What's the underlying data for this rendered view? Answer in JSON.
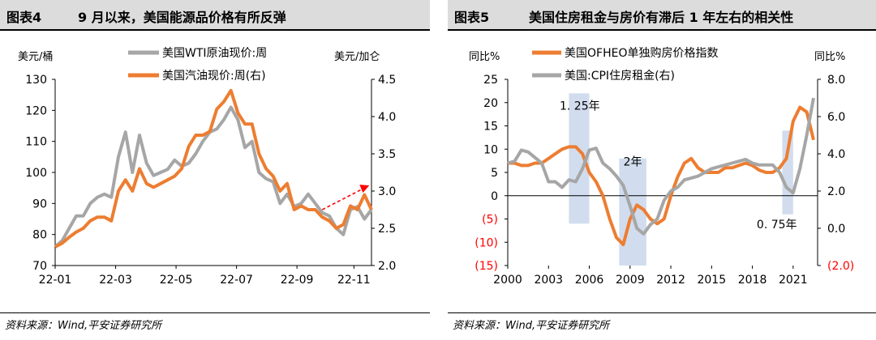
{
  "left": {
    "figure_no": "图表4",
    "title": "9 月以来，美国能源品价格有所反弹",
    "source": "资料来源：Wind,平安证券研究所",
    "left_unit": "美元/桶",
    "right_unit": "美元/加仑"
  },
  "right": {
    "figure_no": "图表5",
    "title": "美国住房租金与房价有滞后 1 年左右的相关性",
    "source": "资料来源：Wind,平安证券研究所",
    "left_unit": "同比%",
    "right_unit": "同比%",
    "annotation_1": "1. 25年",
    "annotation_2": "2年",
    "annotation_3": "0. 75年"
  },
  "chart_data": [
    {
      "type": "line",
      "title": "9 月以来，美国能源品价格有所反弹",
      "ylabel_left": "美元/桶",
      "ylabel_right": "美元/加仑",
      "ylim_left": [
        70,
        130
      ],
      "ylim_right": [
        2.0,
        4.5
      ],
      "yticks_left": [
        "70",
        "80",
        "90",
        "100",
        "110",
        "120",
        "130"
      ],
      "yticks_right": [
        "2.0",
        "2.5",
        "3.0",
        "3.5",
        "4.0",
        "4.5"
      ],
      "x_ticks": [
        "22-01",
        "22-03",
        "22-05",
        "22-07",
        "22-09",
        "22-11"
      ],
      "x_range": [
        0,
        45
      ],
      "legend_position": "top",
      "grid": false,
      "series": [
        {
          "name": "美国WTI原油现价:周",
          "axis": "left",
          "color": "#a6a6a6",
          "x": [
            0,
            1,
            2,
            3,
            4,
            5,
            6,
            7,
            8,
            9,
            10,
            11,
            12,
            13,
            14,
            15,
            16,
            17,
            18,
            19,
            20,
            21,
            22,
            23,
            24,
            25,
            26,
            27,
            28,
            29,
            30,
            31,
            32,
            33,
            34,
            35,
            36,
            37,
            38,
            39,
            40,
            41,
            42,
            43,
            44,
            45
          ],
          "values": [
            76,
            78,
            82,
            86,
            86,
            90,
            92,
            93,
            92,
            105,
            113,
            100,
            112,
            103,
            99,
            100,
            101,
            104,
            102,
            103,
            106,
            110,
            113,
            114,
            117,
            121,
            117,
            108,
            110,
            100,
            98,
            97,
            90,
            93,
            89,
            90,
            93,
            90,
            87,
            86,
            82,
            80,
            88,
            89,
            85,
            88
          ]
        },
        {
          "name": "美国汽油现价:周(右)",
          "axis": "right",
          "color": "#ed7d31",
          "x": [
            0,
            1,
            2,
            3,
            4,
            5,
            6,
            7,
            8,
            9,
            10,
            11,
            12,
            13,
            14,
            15,
            16,
            17,
            18,
            19,
            20,
            21,
            22,
            23,
            24,
            25,
            26,
            27,
            28,
            29,
            30,
            31,
            32,
            33,
            34,
            35,
            36,
            37,
            38,
            39,
            40,
            41,
            42,
            43,
            44,
            45
          ],
          "values": [
            2.25,
            2.3,
            2.38,
            2.45,
            2.5,
            2.6,
            2.65,
            2.65,
            2.6,
            3.0,
            3.15,
            3.0,
            3.3,
            3.1,
            3.05,
            3.1,
            3.15,
            3.2,
            3.3,
            3.6,
            3.75,
            3.75,
            3.8,
            4.1,
            4.2,
            4.35,
            4.05,
            3.9,
            3.9,
            3.5,
            3.3,
            3.2,
            3.0,
            3.1,
            2.75,
            2.8,
            2.75,
            2.75,
            2.65,
            2.6,
            2.5,
            2.55,
            2.8,
            2.75,
            2.95,
            2.75
          ]
        }
      ],
      "annotations": [
        {
          "type": "arrow",
          "style": "dashed",
          "color": "#ff0000",
          "from": [
            38,
            88
          ],
          "to": [
            44,
            95
          ]
        }
      ]
    },
    {
      "type": "line",
      "title": "美国住房租金与房价有滞后 1 年左右的相关性",
      "ylabel_left": "同比%",
      "ylabel_right": "同比%",
      "ylim_left": [
        -15,
        25
      ],
      "ylim_right": [
        -2.0,
        8.0
      ],
      "yticks_left": [
        "25",
        "20",
        "15",
        "10",
        "5",
        "0",
        "(5)",
        "(10)",
        "(15)"
      ],
      "yticks_right": [
        "8.0",
        "6.0",
        "4.0",
        "2.0",
        "0.0",
        "(2.0)"
      ],
      "x_ticks": [
        "2000",
        "2003",
        "2006",
        "2009",
        "2012",
        "2015",
        "2018",
        "2021"
      ],
      "x_range": [
        2000,
        2022.8
      ],
      "legend_position": "top",
      "grid": false,
      "series": [
        {
          "name": "美国OFHEO单独购房价格指数",
          "axis": "left",
          "color": "#ed7d31",
          "x": [
            2000,
            2000.5,
            2001,
            2001.5,
            2002,
            2002.5,
            2003,
            2003.5,
            2004,
            2004.5,
            2005,
            2005.5,
            2006,
            2006.5,
            2007,
            2007.5,
            2008,
            2008.5,
            2009,
            2009.5,
            2010,
            2010.5,
            2011,
            2011.5,
            2012,
            2012.5,
            2013,
            2013.5,
            2014,
            2014.5,
            2015,
            2015.5,
            2016,
            2016.5,
            2017,
            2017.5,
            2018,
            2018.5,
            2019,
            2019.5,
            2020,
            2020.5,
            2021,
            2021.5,
            2022,
            2022.5
          ],
          "values": [
            7,
            7,
            6.5,
            6.5,
            7,
            7,
            8,
            9,
            10,
            10.5,
            10.5,
            9,
            5,
            3,
            0,
            -5,
            -9,
            -10.5,
            -5,
            -2,
            -3,
            -5,
            -6,
            -5,
            0,
            4,
            7,
            8,
            6,
            5,
            5,
            5,
            6,
            6,
            6.5,
            7,
            6.5,
            5.5,
            5,
            5,
            6,
            8,
            16,
            19,
            18,
            12
          ]
        },
        {
          "name": "美国:CPI住房租金(右)",
          "axis": "right",
          "color": "#a6a6a6",
          "x": [
            2000,
            2000.5,
            2001,
            2001.5,
            2002,
            2002.5,
            2003,
            2003.5,
            2004,
            2004.5,
            2005,
            2005.5,
            2006,
            2006.5,
            2007,
            2007.5,
            2008,
            2008.5,
            2009,
            2009.5,
            2010,
            2010.5,
            2011,
            2011.5,
            2012,
            2012.5,
            2013,
            2013.5,
            2014,
            2014.5,
            2015,
            2015.5,
            2016,
            2016.5,
            2017,
            2017.5,
            2018,
            2018.5,
            2019,
            2019.5,
            2020,
            2020.5,
            2021,
            2021.5,
            2022,
            2022.5
          ],
          "values": [
            3.5,
            3.6,
            4.2,
            4.1,
            3.8,
            3.5,
            2.5,
            2.5,
            2.2,
            2.6,
            2.5,
            3.2,
            4.2,
            4.3,
            3.5,
            3.2,
            2.8,
            2.3,
            1.2,
            0.0,
            -0.3,
            0.2,
            0.5,
            1.5,
            2.0,
            2.2,
            2.6,
            2.7,
            2.8,
            3.0,
            3.2,
            3.3,
            3.4,
            3.5,
            3.6,
            3.7,
            3.5,
            3.4,
            3.4,
            3.4,
            3.0,
            2.2,
            1.9,
            3.2,
            5.0,
            7.0
          ]
        }
      ],
      "highlight_bands": [
        [
          2004.5,
          2006.0
        ],
        [
          2008.2,
          2010.2
        ],
        [
          2020.2,
          2021.0
        ]
      ]
    }
  ]
}
